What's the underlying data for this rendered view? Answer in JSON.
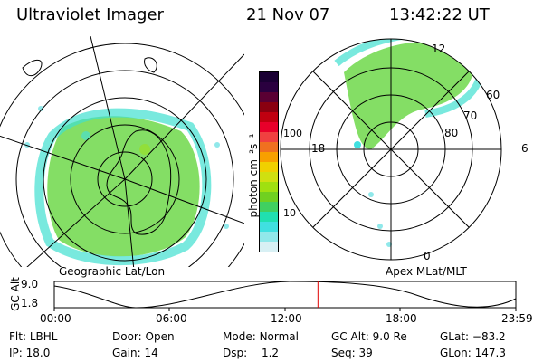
{
  "header": {
    "instrument": "Ultraviolet Imager",
    "date": "21 Nov 07",
    "time": "13:42:22 UT"
  },
  "maps": {
    "geographic_label": "Geographic Lat/Lon",
    "apex_label": "Apex MLat/MLT",
    "apex_mlt_labels": {
      "top": "12",
      "left": "18",
      "right": "6",
      "bottom": "0"
    },
    "apex_lat_labels": [
      "60",
      "70",
      "80"
    ]
  },
  "colorbar": {
    "unit_label": "photon cm⁻²s⁻¹",
    "ticks": [
      "100",
      "10"
    ],
    "colors": [
      "#1a0033",
      "#2a003f",
      "#5a0033",
      "#8a0010",
      "#c00010",
      "#e8002a",
      "#f04040",
      "#f07020",
      "#f8a000",
      "#f0d000",
      "#d0e010",
      "#a0e010",
      "#70d020",
      "#40d060",
      "#20e0b0",
      "#40e0e0",
      "#90e8ea",
      "#d8f0f4"
    ]
  },
  "timeline": {
    "ylabel": "GC Alt",
    "yticks": [
      "9.0",
      "1.8"
    ],
    "xticks": [
      "00:00",
      "06:00",
      "12:00",
      "18:00",
      "23:59"
    ],
    "current_time_fraction": 0.5712
  },
  "info": {
    "filter_label": "Flt:",
    "filter_value": "LBHL",
    "door_label": "Door:",
    "door_value": "Open",
    "mode_label": "Mode:",
    "mode_value": "Normal",
    "gcalt_label": "GC Alt:",
    "gcalt_value": "9.0 Re",
    "glat_label": "GLat:",
    "glat_value": "−83.2",
    "ip_label": "IP:",
    "ip_value": "18.0",
    "gain_label": "Gain:",
    "gain_value": "14",
    "dsp_label": "Dsp:",
    "dsp_value": "1.2",
    "seq_label": "Seq:",
    "seq_value": "39",
    "glon_label": "GLon:",
    "glon_value": "147.3"
  }
}
